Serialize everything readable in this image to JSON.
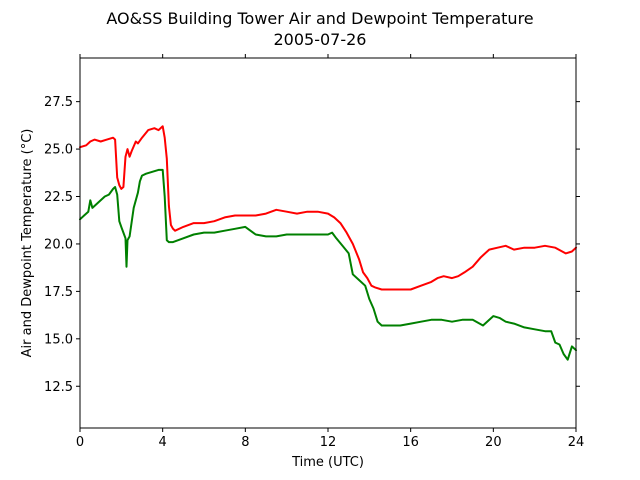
{
  "chart_data": {
    "type": "line",
    "title": "AO&SS Building Tower Air and Dewpoint Temperature",
    "subtitle": "2005-07-26",
    "xlabel": "Time (UTC)",
    "ylabel": "Air and Dewpoint Temperature (°C)",
    "xlim": [
      0,
      24
    ],
    "ylim": [
      10.3,
      29.8
    ],
    "x_ticks": [
      0,
      4,
      8,
      12,
      16,
      20,
      24
    ],
    "x_tick_labels": [
      "0",
      "4",
      "8",
      "12",
      "16",
      "20",
      "24"
    ],
    "y_ticks": [
      12.5,
      15.0,
      17.5,
      20.0,
      22.5,
      25.0,
      27.5
    ],
    "y_tick_labels": [
      "12.5",
      "15.0",
      "17.5",
      "20.0",
      "22.5",
      "25.0",
      "27.5"
    ],
    "grid": false,
    "series": [
      {
        "color": "#ff0000",
        "x": [
          0,
          0.3,
          0.5,
          0.7,
          1.0,
          1.3,
          1.6,
          1.7,
          1.8,
          1.9,
          2.0,
          2.1,
          2.2,
          2.3,
          2.4,
          2.5,
          2.7,
          2.8,
          3.0,
          3.3,
          3.6,
          3.8,
          4.0,
          4.1,
          4.2,
          4.3,
          4.4,
          4.5,
          4.6,
          5.0,
          5.5,
          6.0,
          6.5,
          7.0,
          7.5,
          8.0,
          8.5,
          9.0,
          9.5,
          10.0,
          10.5,
          11.0,
          11.5,
          12.0,
          12.3,
          12.6,
          12.9,
          13.2,
          13.5,
          13.7,
          13.9,
          14.1,
          14.3,
          14.6,
          15.0,
          15.5,
          16.0,
          16.5,
          17.0,
          17.3,
          17.6,
          18.0,
          18.3,
          18.6,
          19.0,
          19.4,
          19.8,
          20.2,
          20.6,
          21.0,
          21.5,
          22.0,
          22.5,
          23.0,
          23.5,
          23.8,
          24.0
        ],
        "y": [
          25.1,
          25.2,
          25.4,
          25.5,
          25.4,
          25.5,
          25.6,
          25.5,
          23.5,
          23.1,
          22.9,
          23.0,
          24.6,
          25.0,
          24.6,
          24.9,
          25.4,
          25.3,
          25.6,
          26.0,
          26.1,
          26.0,
          26.2,
          25.6,
          24.5,
          22.0,
          21.0,
          20.8,
          20.7,
          20.9,
          21.1,
          21.1,
          21.2,
          21.4,
          21.5,
          21.5,
          21.5,
          21.6,
          21.8,
          21.7,
          21.6,
          21.7,
          21.7,
          21.6,
          21.4,
          21.1,
          20.6,
          20.0,
          19.2,
          18.5,
          18.2,
          17.8,
          17.7,
          17.6,
          17.6,
          17.6,
          17.6,
          17.8,
          18.0,
          18.2,
          18.3,
          18.2,
          18.3,
          18.5,
          18.8,
          19.3,
          19.7,
          19.8,
          19.9,
          19.7,
          19.8,
          19.8,
          19.9,
          19.8,
          19.5,
          19.6,
          19.8
        ]
      },
      {
        "color": "#008000",
        "x": [
          0,
          0.2,
          0.4,
          0.5,
          0.6,
          0.8,
          1.0,
          1.2,
          1.4,
          1.6,
          1.7,
          1.8,
          1.9,
          2.0,
          2.1,
          2.2,
          2.25,
          2.3,
          2.4,
          2.6,
          2.8,
          2.9,
          3.0,
          3.2,
          3.5,
          3.8,
          4.0,
          4.1,
          4.2,
          4.3,
          4.5,
          5.0,
          5.5,
          6.0,
          6.5,
          7.0,
          7.5,
          8.0,
          8.5,
          9.0,
          9.5,
          10.0,
          10.5,
          11.0,
          11.5,
          12.0,
          12.2,
          12.4,
          12.7,
          13.0,
          13.2,
          13.5,
          13.8,
          14.0,
          14.2,
          14.4,
          14.6,
          15.0,
          15.5,
          16.0,
          16.5,
          17.0,
          17.5,
          18.0,
          18.5,
          19.0,
          19.5,
          20.0,
          20.3,
          20.6,
          21.0,
          21.5,
          22.0,
          22.5,
          22.8,
          23.0,
          23.2,
          23.4,
          23.6,
          23.8,
          24.0
        ],
        "y": [
          21.3,
          21.5,
          21.7,
          22.3,
          21.9,
          22.1,
          22.3,
          22.5,
          22.6,
          22.9,
          23.0,
          22.6,
          21.2,
          20.9,
          20.6,
          20.3,
          18.8,
          20.2,
          20.4,
          21.9,
          22.7,
          23.3,
          23.6,
          23.7,
          23.8,
          23.9,
          23.9,
          22.5,
          20.2,
          20.1,
          20.1,
          20.3,
          20.5,
          20.6,
          20.6,
          20.7,
          20.8,
          20.9,
          20.5,
          20.4,
          20.4,
          20.5,
          20.5,
          20.5,
          20.5,
          20.5,
          20.6,
          20.3,
          19.9,
          19.5,
          18.4,
          18.1,
          17.8,
          17.1,
          16.6,
          15.9,
          15.7,
          15.7,
          15.7,
          15.8,
          15.9,
          16.0,
          16.0,
          15.9,
          16.0,
          16.0,
          15.7,
          16.2,
          16.1,
          15.9,
          15.8,
          15.6,
          15.5,
          15.4,
          15.4,
          14.8,
          14.7,
          14.2,
          13.9,
          14.6,
          14.4
        ]
      }
    ]
  }
}
